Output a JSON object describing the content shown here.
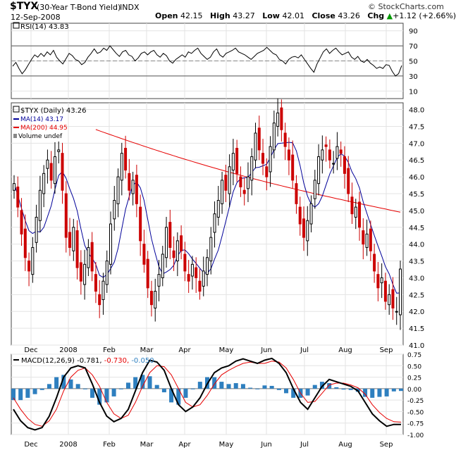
{
  "header": {
    "symbol": "$TYX",
    "name": "(30-Year T-Bond Yield)",
    "exchange": "INDX",
    "date": "12-Sep-2008",
    "brand": "© StockCharts.com",
    "quote": {
      "open_label": "Open",
      "open": "42.15",
      "high_label": "High",
      "high": "43.27",
      "low_label": "Low",
      "low": "42.01",
      "close_label": "Close",
      "close": "43.26",
      "chg_label": "Chg",
      "chg": "+1.12 (+2.66%)"
    },
    "chg_arrow": "up-arrow-icon"
  },
  "colors": {
    "ma200": "#e60000",
    "ma14": "#000099",
    "candle_up": "#000000",
    "candle_down": "#cc0000",
    "macd_hist": "#2e7fbf",
    "macd_signal": "#e60000",
    "macd_line": "#000000",
    "ema9_label": "#2e7fbf"
  },
  "chart_data": [
    {
      "type": "line",
      "title": "RSI(14) 43.83",
      "series": [
        {
          "name": "RSI(14)",
          "values": [
            43,
            48,
            40,
            33,
            38,
            45,
            52,
            58,
            55,
            60,
            56,
            62,
            58,
            64,
            55,
            50,
            46,
            53,
            60,
            57,
            52,
            50,
            45,
            48,
            55,
            60,
            66,
            60,
            62,
            67,
            64,
            70,
            65,
            60,
            56,
            62,
            64,
            58,
            56,
            50,
            54,
            60,
            62,
            58,
            62,
            64,
            58,
            55,
            60,
            57,
            50,
            47,
            52,
            55,
            58,
            55,
            62,
            60,
            64,
            67,
            60,
            56,
            52,
            55,
            62,
            66,
            58,
            55,
            60,
            62,
            64,
            67,
            62,
            60,
            58,
            55,
            52,
            56,
            60,
            62,
            64,
            68,
            64,
            60,
            58,
            52,
            50,
            46,
            52,
            55,
            56,
            54,
            58,
            52,
            46,
            40,
            35,
            46,
            54,
            62,
            66,
            60,
            64,
            67,
            62,
            58,
            60,
            62,
            55,
            52,
            56,
            50,
            48,
            52,
            47,
            44,
            40,
            42,
            40,
            45,
            44,
            36,
            30,
            33,
            43.83
          ]
        }
      ],
      "ylim": [
        0,
        100
      ],
      "ticks": [
        "90",
        "70",
        "50",
        "30",
        "10"
      ],
      "ref_lines": [
        70,
        50,
        30
      ]
    },
    {
      "type": "candlestick",
      "title": "$TYX (Daily) 43.26",
      "legend": [
        "$TYX (Daily) 43.26",
        "MA(14) 43.17",
        "MA(200) 44.95",
        "Volume undef"
      ],
      "ylim": [
        41,
        48.2
      ],
      "yticks": [
        "48.0",
        "47.5",
        "47.0",
        "46.5",
        "46.0",
        "45.5",
        "45.0",
        "44.5",
        "44.0",
        "43.5",
        "43.0",
        "42.5",
        "42.0",
        "41.5",
        "41.0"
      ],
      "x_labels": [
        "Dec",
        "2008",
        "Feb",
        "Mar",
        "Apr",
        "May",
        "Jun",
        "Jul",
        "Aug",
        "Sep"
      ],
      "close": [
        45.8,
        45.1,
        44.3,
        43.6,
        43.2,
        43.9,
        44.8,
        45.6,
        46.1,
        46.5,
        45.9,
        46.6,
        46.8,
        45.6,
        44.2,
        43.9,
        44.5,
        43.3,
        42.9,
        43.4,
        43.9,
        43.2,
        42.6,
        42.2,
        42.9,
        43.5,
        44.6,
        45.3,
        46.0,
        46.7,
        46.2,
        45.6,
        45.9,
        45.2,
        44.1,
        43.4,
        42.7,
        42.2,
        42.6,
        43.1,
        43.7,
        44.5,
        43.9,
        43.6,
        44.1,
        43.8,
        43.2,
        42.9,
        43.4,
        43.0,
        42.6,
        43.2,
        43.6,
        44.2,
        44.9,
        45.3,
        45.9,
        45.6,
        46.3,
        46.7,
        46.1,
        45.7,
        45.5,
        46.0,
        46.6,
        47.3,
        46.8,
        46.4,
        46.0,
        46.9,
        47.6,
        47.9,
        47.4,
        46.9,
        46.5,
        45.9,
        45.2,
        44.6,
        44.2,
        44.7,
        45.2,
        45.9,
        46.6,
        46.8,
        46.9,
        46.5,
        46.4,
        46.9,
        46.7,
        46.1,
        45.5,
        44.9,
        45.1,
        44.5,
        44.0,
        44.3,
        43.8,
        43.2,
        42.7,
        43.0,
        42.3,
        42.5,
        42.1,
        42.0,
        43.26
      ],
      "ma14_end": 43.17,
      "ma200_end": 44.95
    },
    {
      "type": "line",
      "title": "MACD(12,26,9)",
      "legend": [
        "MACD(12,26,9)",
        "-0.781",
        "-0.730",
        "-0.050"
      ],
      "ylim": [
        -1.0,
        0.75
      ],
      "yticks": [
        "0.75",
        "0.50",
        "0.25",
        "0.00",
        "-0.25",
        "-0.50",
        "-0.75",
        "-1.00"
      ],
      "x_labels": [
        "Dec",
        "2008",
        "Feb",
        "Mar",
        "Apr",
        "May",
        "Jun",
        "Jul",
        "Aug",
        "Sep"
      ],
      "series": [
        {
          "name": "MACD",
          "values": [
            -0.45,
            -0.7,
            -0.85,
            -0.9,
            -0.85,
            -0.6,
            -0.2,
            0.25,
            0.45,
            0.5,
            0.45,
            0.1,
            -0.3,
            -0.6,
            -0.72,
            -0.65,
            -0.45,
            -0.05,
            0.35,
            0.62,
            0.58,
            0.4,
            0.0,
            -0.35,
            -0.5,
            -0.4,
            -0.2,
            0.1,
            0.35,
            0.45,
            0.5,
            0.6,
            0.65,
            0.6,
            0.55,
            0.62,
            0.66,
            0.55,
            0.35,
            0.0,
            -0.3,
            -0.45,
            -0.2,
            0.05,
            0.2,
            0.15,
            0.1,
            0.05,
            -0.05,
            -0.3,
            -0.55,
            -0.7,
            -0.82,
            -0.78,
            -0.781
          ]
        },
        {
          "name": "Signal",
          "values": [
            -0.2,
            -0.45,
            -0.65,
            -0.78,
            -0.82,
            -0.7,
            -0.45,
            -0.05,
            0.25,
            0.4,
            0.45,
            0.3,
            0.05,
            -0.3,
            -0.55,
            -0.65,
            -0.58,
            -0.3,
            0.05,
            0.35,
            0.5,
            0.48,
            0.3,
            0.0,
            -0.3,
            -0.4,
            -0.35,
            -0.15,
            0.1,
            0.3,
            0.4,
            0.48,
            0.55,
            0.58,
            0.55,
            0.55,
            0.6,
            0.58,
            0.45,
            0.2,
            -0.1,
            -0.3,
            -0.28,
            -0.1,
            0.08,
            0.12,
            0.12,
            0.08,
            0.02,
            -0.12,
            -0.35,
            -0.52,
            -0.65,
            -0.72,
            -0.73
          ]
        }
      ]
    }
  ]
}
